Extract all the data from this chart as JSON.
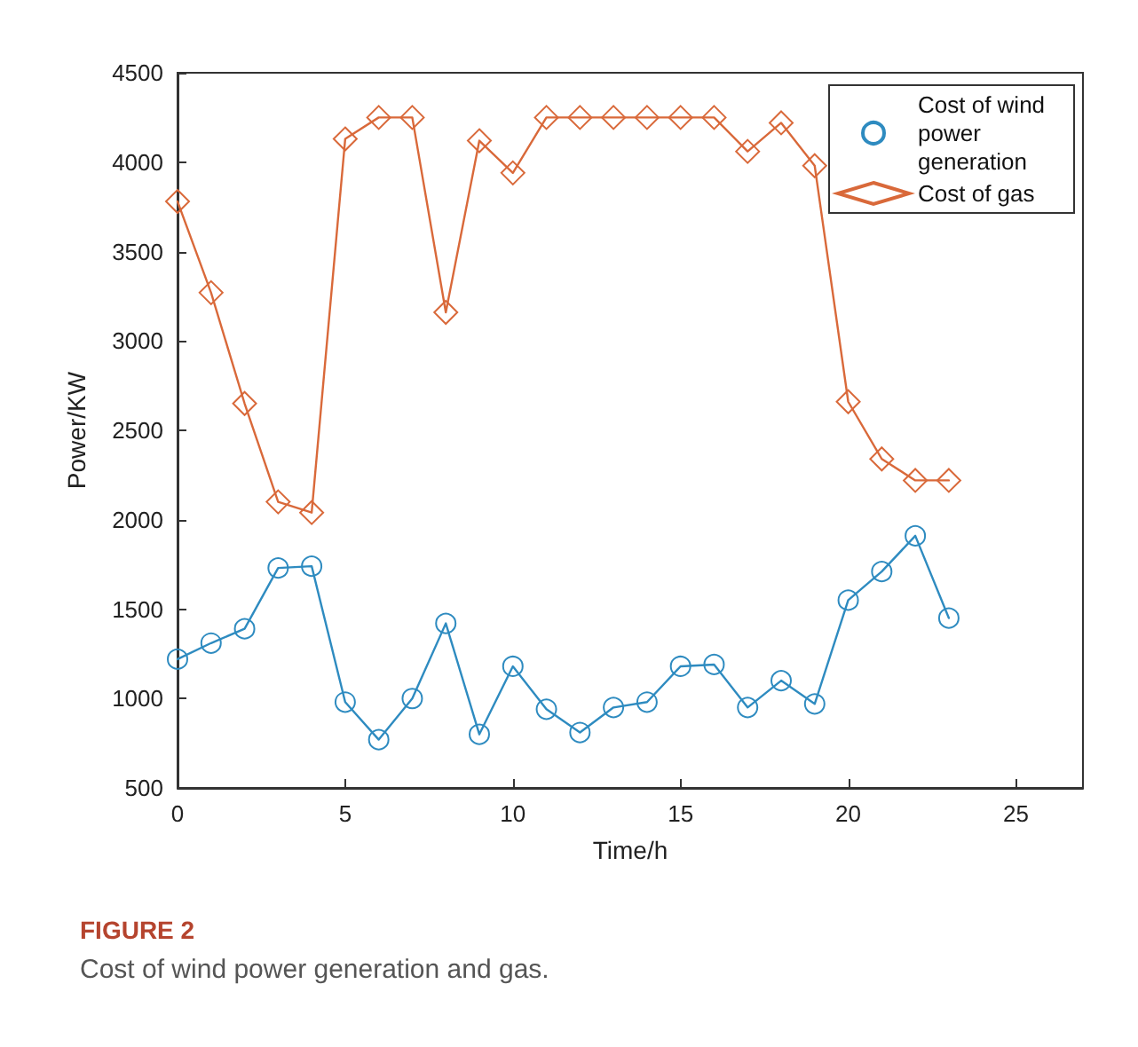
{
  "chart_data": {
    "type": "line",
    "title": "FIGURE 2",
    "subtitle": "Cost of wind power generation and gas.",
    "xlabel": "Time/h",
    "ylabel": "Power/KW",
    "x": [
      0,
      1,
      2,
      3,
      4,
      5,
      6,
      7,
      8,
      9,
      10,
      11,
      12,
      13,
      14,
      15,
      16,
      17,
      18,
      19,
      20,
      21,
      22,
      23
    ],
    "series": [
      {
        "name": "Cost of wind power generation",
        "color": "#2e8bc0",
        "marker": "circle",
        "values": [
          1220,
          1310,
          1390,
          1730,
          1740,
          980,
          770,
          1000,
          1420,
          800,
          1180,
          940,
          810,
          950,
          980,
          1180,
          1190,
          950,
          1100,
          970,
          1550,
          1710,
          1910,
          1450
        ]
      },
      {
        "name": "Cost of gas",
        "color": "#d9693a",
        "marker": "diamond",
        "values": [
          3780,
          3270,
          2650,
          2100,
          2040,
          4130,
          4250,
          4250,
          3160,
          4120,
          3940,
          4250,
          4250,
          4250,
          4250,
          4250,
          4250,
          4060,
          4220,
          3980,
          2660,
          2340,
          2220,
          2220
        ]
      }
    ],
    "xlim": [
      0,
      27
    ],
    "xticks": [
      0,
      5,
      10,
      15,
      20,
      25
    ],
    "ylim": [
      500,
      4500
    ],
    "yticks": [
      500,
      1000,
      1500,
      2000,
      2500,
      3000,
      3500,
      4000,
      4500
    ],
    "grid": false,
    "legend": "top right",
    "line_style": "solid"
  }
}
